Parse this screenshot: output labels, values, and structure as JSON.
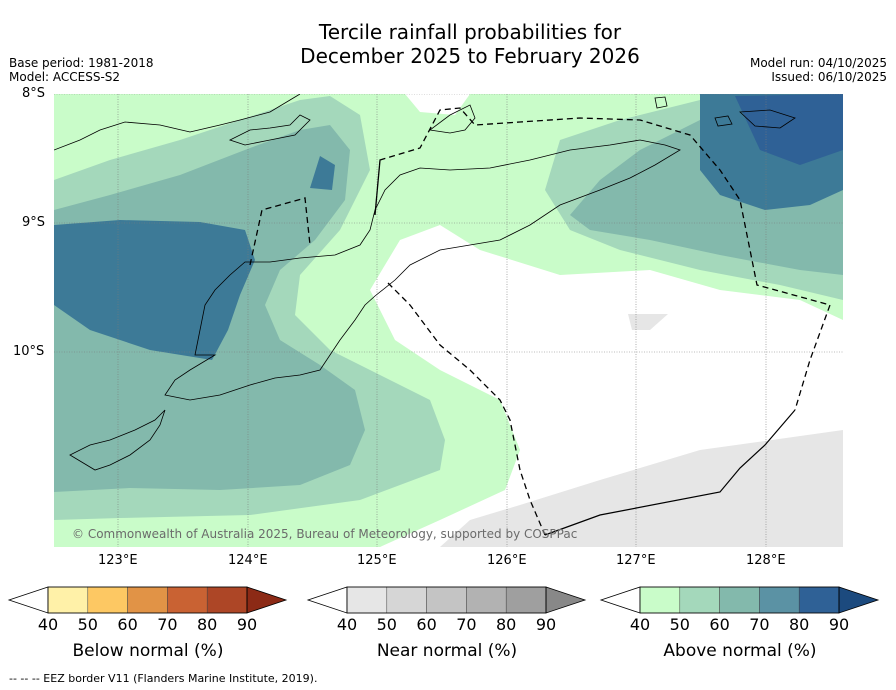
{
  "title": {
    "line1": "Tercile rainfall probabilities for",
    "line2": "December 2025 to February 2026"
  },
  "meta_left": {
    "base_period": "Base period: 1981-2018",
    "model": "Model: ACCESS-S2"
  },
  "meta_right": {
    "model_run": "Model run: 04/10/2025",
    "issued": "Issued: 06/10/2025"
  },
  "latitude_labels": [
    "8°S",
    "9°S",
    "10°S"
  ],
  "longitude_labels": [
    "123°E",
    "124°E",
    "125°E",
    "126°E",
    "127°E",
    "128°E"
  ],
  "copyright": "© Commonwealth of Australia 2025, Bureau of Meteorology, supported by COSPPac",
  "colorbars": {
    "below": {
      "label": "Below normal (%)",
      "ticks": [
        "40",
        "50",
        "60",
        "70",
        "80",
        "90"
      ],
      "colors": [
        "#fff1a8",
        "#fdc863",
        "#e19346",
        "#c96233",
        "#ad4626",
        "#8c2a16"
      ]
    },
    "near": {
      "label": "Near normal (%)",
      "ticks": [
        "40",
        "50",
        "60",
        "70",
        "80",
        "90"
      ],
      "colors": [
        "#e6e6e6",
        "#d6d6d6",
        "#c4c4c4",
        "#b2b2b2",
        "#9f9f9f",
        "#888888"
      ]
    },
    "above": {
      "label": "Above normal (%)",
      "ticks": [
        "40",
        "50",
        "60",
        "70",
        "80",
        "90"
      ],
      "colors": [
        "#c9fcc9",
        "#a4d8bb",
        "#83b9ac",
        "#5b92a4",
        "#2f6196",
        "#1c4a7e"
      ]
    }
  },
  "footer": "--  --  -- EEZ border V11 (Flanders Marine Institute, 2019)."
}
